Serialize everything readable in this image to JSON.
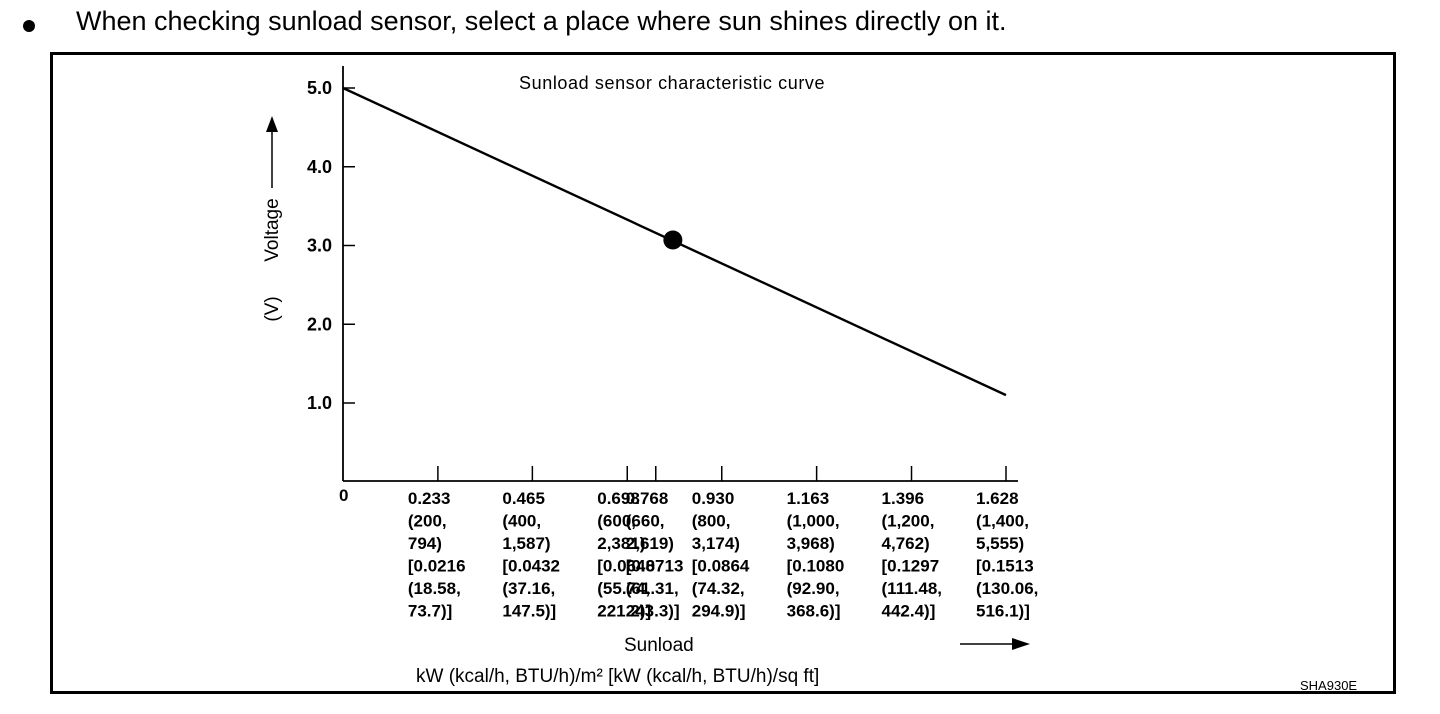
{
  "note": {
    "text": "When checking sunload sensor, select a place where sun shines directly on it."
  },
  "chart_data": {
    "type": "line",
    "title": "Sunload sensor characteristic curve",
    "ylabel": "Voltage",
    "yunit": "(V)",
    "xlabel": "Sunload",
    "xunit": "kW (kcal/h, BTU/h)/m²  [kW (kcal/h, BTU/h)/sq ft]",
    "xlim": [
      0,
      1.628
    ],
    "ylim": [
      0,
      5.0
    ],
    "yticks": [
      "5.0",
      "4.0",
      "3.0",
      "2.0",
      "1.0"
    ],
    "ytick_values": [
      5.0,
      4.0,
      3.0,
      2.0,
      1.0
    ],
    "origin_label": "0",
    "xticks": [
      {
        "value": 0.233,
        "lines": [
          "0.233",
          "(200,",
          "794)",
          "[0.0216",
          "(18.58,",
          "73.7)]"
        ]
      },
      {
        "value": 0.465,
        "lines": [
          "0.465",
          "(400,",
          "1,587)",
          "[0.0432",
          "(37.16,",
          "147.5)]"
        ]
      },
      {
        "value": 0.698,
        "lines": [
          "0.698",
          "(600,",
          "2,381)",
          "[0.0648",
          "(55.74,",
          "221.2)]"
        ]
      },
      {
        "value": 0.768,
        "lines": [
          "0.768",
          "(660,",
          "2,619)",
          "[0.0713",
          "(61.31,",
          "243.3)]"
        ]
      },
      {
        "value": 0.93,
        "lines": [
          "0.930",
          "(800,",
          "3,174)",
          "[0.0864",
          "(74.32,",
          "294.9)]"
        ]
      },
      {
        "value": 1.163,
        "lines": [
          "1.163",
          "(1,000,",
          "3,968)",
          "[0.1080",
          "(92.90,",
          "368.6)]"
        ]
      },
      {
        "value": 1.396,
        "lines": [
          "1.396",
          "(1,200,",
          "4,762)",
          "[0.1297",
          "(111.48,",
          "442.4)]"
        ]
      },
      {
        "value": 1.628,
        "lines": [
          "1.628",
          "(1,400,",
          "5,555)",
          "[0.1513",
          "(130.06,",
          "516.1)]"
        ]
      }
    ],
    "series": [
      {
        "points": [
          [
            0,
            5.0
          ],
          [
            1.628,
            1.1
          ]
        ]
      }
    ],
    "marker": {
      "x": 0.81,
      "y": 3.07
    },
    "code": "SHA930E"
  }
}
